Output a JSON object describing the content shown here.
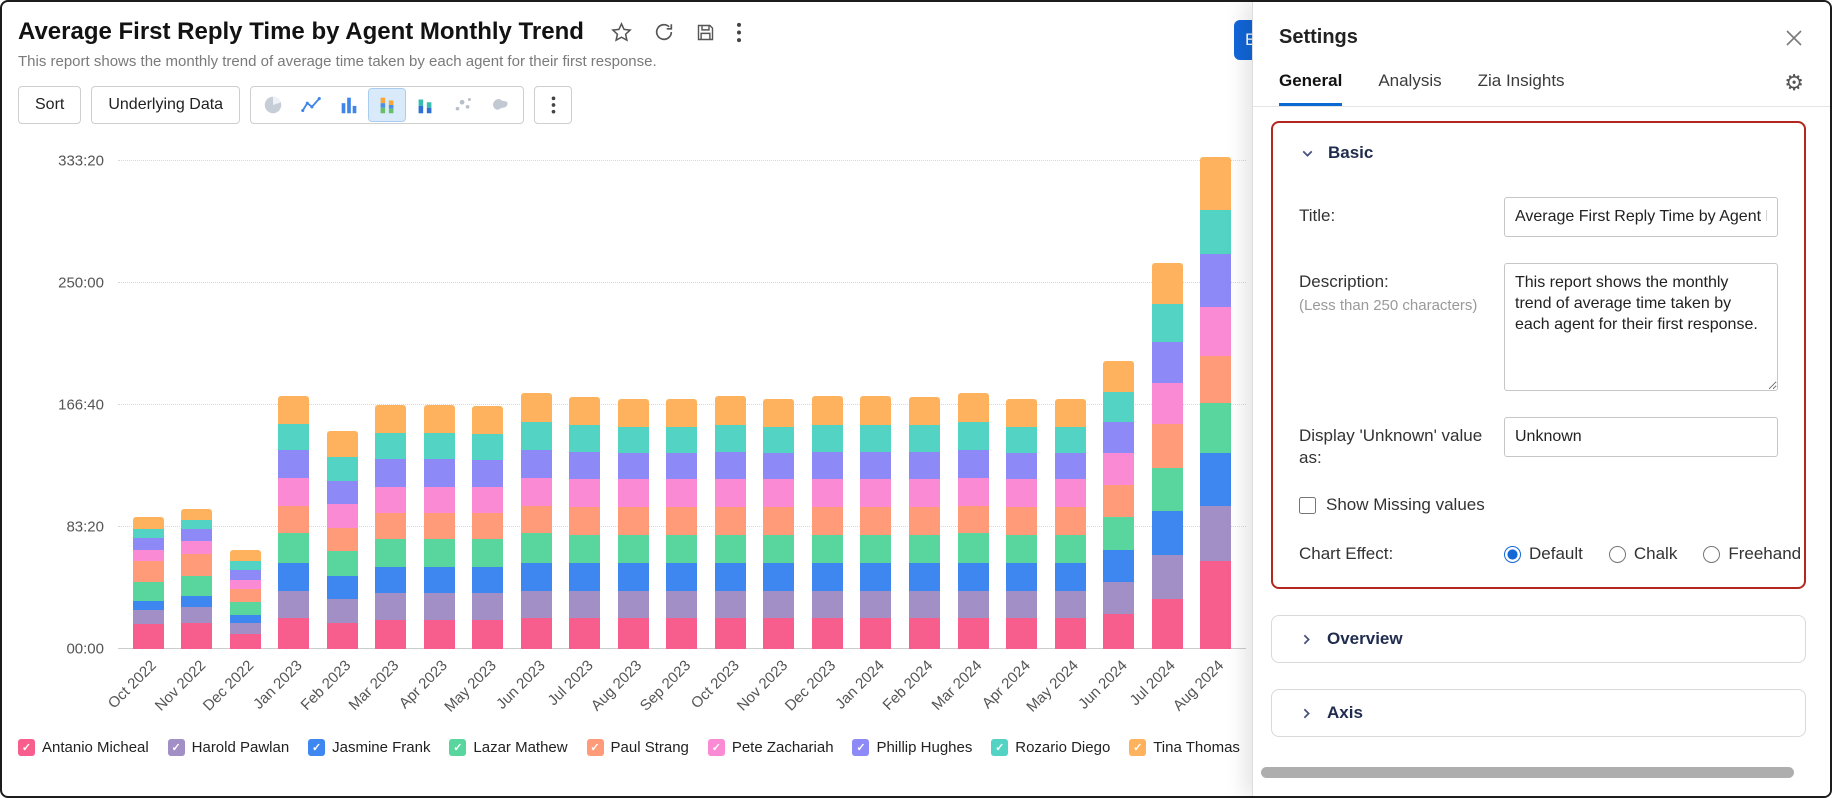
{
  "window": {
    "title": "Average First Reply Time by Agent Monthly Trend",
    "subtitle": "This report shows the monthly trend of average time taken by each agent for their first response."
  },
  "toolbar": {
    "sort_label": "Sort",
    "underlying_data_label": "Underlying Data",
    "chart_type_icons": [
      "pie-chart",
      "line-chart",
      "bar-chart",
      "stacked-bar-chart",
      "combination-chart",
      "scatter-chart",
      "map-chart"
    ],
    "selected_chart_type": "stacked-bar-chart"
  },
  "edit_button_label": "E",
  "colors": {
    "accent_blue": "#0b69d4",
    "annotation_red": "#b3271e",
    "selected_icon_bg": "#d9eafb"
  },
  "chart_data": {
    "type": "bar",
    "stacked": true,
    "title": "Average First Reply Time by Agent Monthly Trend",
    "xlabel": "",
    "ylabel": "",
    "y_unit": "hours shown as hh:mm",
    "y_ticks": [
      "00:00",
      "83:20",
      "166:40",
      "250:00",
      "333:20"
    ],
    "y_tick_hours": [
      0,
      83.33,
      166.67,
      250,
      333.33
    ],
    "ylim": [
      0,
      345
    ],
    "grid": "dotted horizontal",
    "legend_position": "bottom",
    "categories": [
      "Oct 2022",
      "Nov 2022",
      "Dec 2022",
      "Jan 2023",
      "Feb 2023",
      "Mar 2023",
      "Apr 2023",
      "May 2023",
      "Jun 2023",
      "Jul 2023",
      "Aug 2023",
      "Sep 2023",
      "Oct 2023",
      "Nov 2023",
      "Dec 2023",
      "Jan 2024",
      "Feb 2024",
      "Mar 2024",
      "Apr 2024",
      "May 2024",
      "Jun 2024",
      "Jul 2024",
      "Aug 2024"
    ],
    "series": [
      {
        "name": "Antanio Micheal",
        "color": "#F75D8D",
        "values": [
          17,
          18,
          10,
          21,
          18,
          20,
          20,
          20,
          21,
          21,
          21,
          21,
          21,
          21,
          21,
          21,
          21,
          21,
          21,
          21,
          24,
          34,
          60
        ]
      },
      {
        "name": "Harold Pawlan",
        "color": "#A18FC6",
        "values": [
          10,
          11,
          8,
          19,
          16,
          18,
          18,
          18,
          19,
          19,
          19,
          19,
          19,
          19,
          19,
          19,
          19,
          19,
          19,
          19,
          22,
          30,
          38
        ]
      },
      {
        "name": "Jasmine Frank",
        "color": "#3E86F0",
        "values": [
          6,
          7,
          5,
          19,
          16,
          18,
          18,
          18,
          19,
          19,
          19,
          19,
          19,
          19,
          19,
          19,
          19,
          19,
          19,
          19,
          22,
          30,
          36
        ]
      },
      {
        "name": "Lazar Mathew",
        "color": "#58D69E",
        "values": [
          13,
          14,
          9,
          20,
          17,
          19,
          19,
          19,
          20,
          19,
          19,
          19,
          19,
          19,
          19,
          19,
          19,
          20,
          19,
          19,
          22,
          30,
          34
        ]
      },
      {
        "name": "Paul Strang",
        "color": "#FF9B78",
        "values": [
          14,
          15,
          9,
          19,
          16,
          18,
          18,
          18,
          19,
          19,
          19,
          19,
          19,
          19,
          19,
          19,
          19,
          19,
          19,
          19,
          22,
          30,
          32
        ]
      },
      {
        "name": "Pete Zachariah",
        "color": "#FB8AD4",
        "values": [
          8,
          9,
          6,
          19,
          16,
          18,
          18,
          18,
          19,
          19,
          19,
          19,
          19,
          19,
          19,
          19,
          19,
          19,
          19,
          19,
          22,
          28,
          34
        ]
      },
      {
        "name": "Phillip Hughes",
        "color": "#8D89F6",
        "values": [
          8,
          8,
          7,
          19,
          16,
          19,
          19,
          18,
          19,
          19,
          18,
          18,
          19,
          18,
          19,
          19,
          19,
          19,
          18,
          18,
          21,
          28,
          36
        ]
      },
      {
        "name": "Rozario Diego",
        "color": "#53D3C4",
        "values": [
          6,
          6,
          6,
          18,
          16,
          18,
          18,
          18,
          19,
          18,
          18,
          18,
          18,
          18,
          18,
          18,
          18,
          19,
          18,
          18,
          21,
          26,
          30
        ]
      },
      {
        "name": "Tina Thomas",
        "color": "#FFB25E",
        "values": [
          8,
          8,
          8,
          19,
          18,
          19,
          19,
          19,
          20,
          19,
          19,
          19,
          20,
          19,
          20,
          20,
          19,
          20,
          19,
          19,
          21,
          28,
          36
        ]
      }
    ]
  },
  "settings_panel": {
    "title": "Settings",
    "tabs": [
      {
        "label": "General",
        "active": true
      },
      {
        "label": "Analysis",
        "active": false
      },
      {
        "label": "Zia Insights",
        "active": false
      }
    ],
    "sections": {
      "basic": {
        "label": "Basic",
        "expanded": true,
        "highlighted": true,
        "fields": {
          "title": {
            "label": "Title:",
            "value": "Average First Reply Time by Agent Monthly Trend"
          },
          "description": {
            "label": "Description:",
            "hint": "(Less than 250 characters)",
            "value": "This report shows the monthly trend of average time taken by each agent for their first response."
          },
          "display_unknown": {
            "label": "Display 'Unknown' value as:",
            "value": "Unknown"
          },
          "show_missing": {
            "label": "Show Missing values",
            "checked": false
          },
          "chart_effect": {
            "label": "Chart Effect:",
            "options": [
              "Default",
              "Chalk",
              "Freehand"
            ],
            "selected": "Default"
          }
        }
      },
      "overview": {
        "label": "Overview",
        "expanded": false
      },
      "axis": {
        "label": "Axis",
        "expanded": false
      }
    }
  }
}
